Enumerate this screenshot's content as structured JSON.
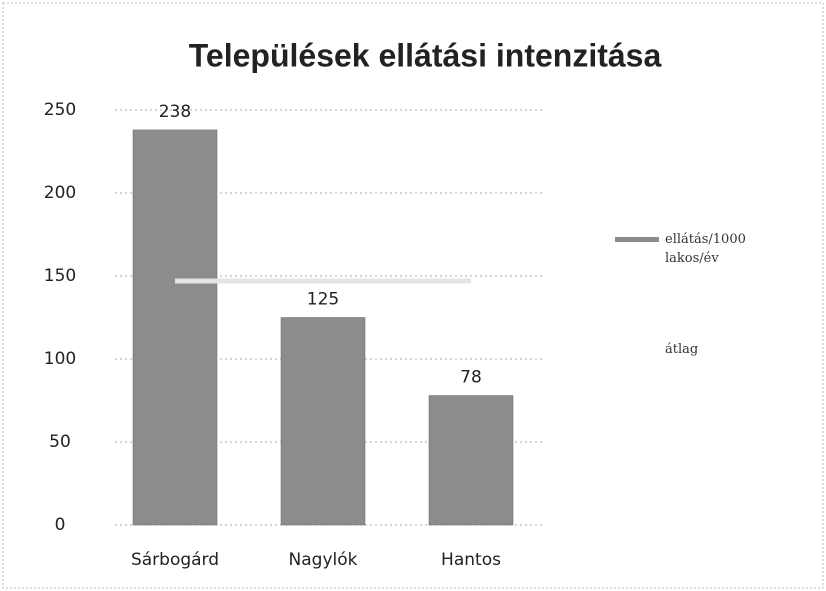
{
  "chart_data": {
    "type": "bar",
    "title": "Települések ellátási intenzitása",
    "categories": [
      "Sárbogárd",
      "Nagylók",
      "Hantos"
    ],
    "series": [
      {
        "name": "ellátás/1000 lakos/év",
        "color": "#8c8c8c",
        "values": [
          238,
          125,
          78
        ]
      },
      {
        "name": "átlag",
        "type": "line",
        "color": "#e4e4e4",
        "values": [
          147,
          147,
          147
        ]
      }
    ],
    "ylim": [
      0,
      250
    ],
    "yticks": [
      0,
      50,
      100,
      150,
      200,
      250
    ],
    "grid": true
  }
}
